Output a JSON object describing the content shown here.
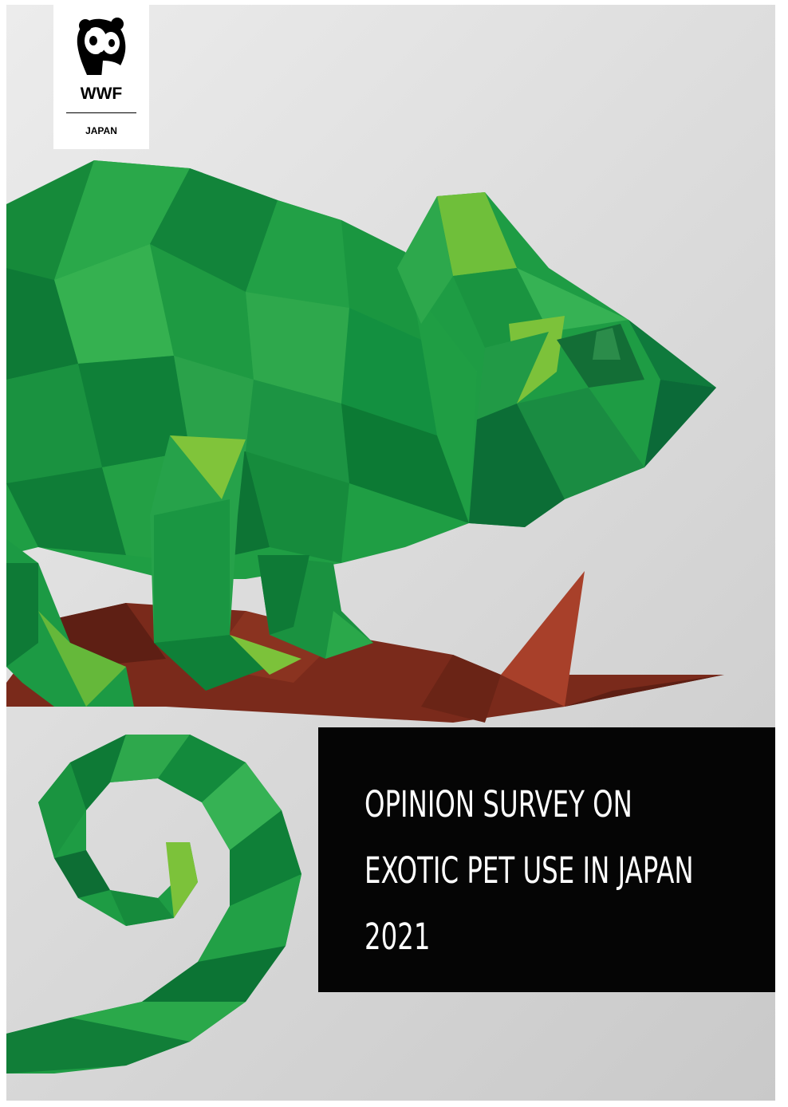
{
  "brand": {
    "wordmark": "WWF",
    "country": "JAPAN"
  },
  "title": {
    "line1": "OPINION SURVEY ON",
    "line2": "EXOTIC PET USE IN JAPAN",
    "line3": "2021"
  },
  "colors": {
    "title_bg": "#050505",
    "title_text": "#ffffff",
    "chameleon_green": "#1a9a3f",
    "branch_brown": "#7a2a1b"
  }
}
